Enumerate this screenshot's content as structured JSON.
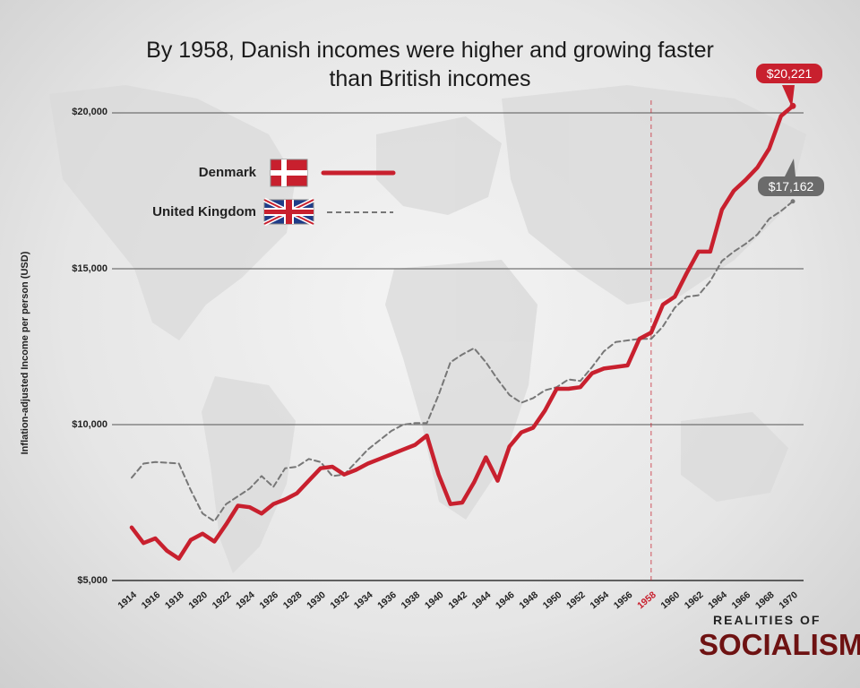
{
  "title_line1": "By 1958, Danish incomes were higher and growing faster",
  "title_line2": "than British incomes",
  "brand": {
    "line1": "REALITIES OF",
    "line2": "SOCIALISM"
  },
  "callouts": {
    "denmark_last": "$20,221",
    "uk_last": "$17,162"
  },
  "legend": [
    {
      "name": "Denmark",
      "flag": "denmark-flag-icon",
      "style": "solid",
      "color": "#c8202e"
    },
    {
      "name": "United Kingdom",
      "flag": "uk-flag-icon",
      "style": "dashed",
      "color": "#777777"
    }
  ],
  "colors": {
    "denmark": "#c8202e",
    "uk": "#777777",
    "marker": "#c8202e"
  },
  "chart_data": {
    "type": "line",
    "title": "By 1958, Danish incomes were higher and growing faster than British incomes",
    "ylabel": "Inflation-adjusted Income per person (USD)",
    "xlabel": "",
    "ylim": [
      5000,
      20000
    ],
    "y_tick_labels": [
      "$5,000",
      "$10,000",
      "$15,000",
      "$20,000"
    ],
    "y_tick_values": [
      5000,
      10000,
      15000,
      20000
    ],
    "x_tick_labels": [
      "1914",
      "1916",
      "1918",
      "1920",
      "1922",
      "1924",
      "1926",
      "1928",
      "1930",
      "1932",
      "1934",
      "1936",
      "1938",
      "1940",
      "1942",
      "1944",
      "1946",
      "1948",
      "1950",
      "1952",
      "1954",
      "1956",
      "1958",
      "1960",
      "1962",
      "1964",
      "1966",
      "1968",
      "1970"
    ],
    "highlight_year": 1958,
    "grid": "horizontal",
    "x": [
      1914,
      1915,
      1916,
      1917,
      1918,
      1919,
      1920,
      1921,
      1922,
      1923,
      1924,
      1925,
      1926,
      1927,
      1928,
      1929,
      1930,
      1931,
      1932,
      1933,
      1934,
      1935,
      1936,
      1937,
      1938,
      1939,
      1940,
      1941,
      1942,
      1943,
      1944,
      1945,
      1946,
      1947,
      1948,
      1949,
      1950,
      1951,
      1952,
      1953,
      1954,
      1955,
      1956,
      1957,
      1958,
      1959,
      1960,
      1961,
      1962,
      1963,
      1964,
      1965,
      1966,
      1967,
      1968,
      1969,
      1970
    ],
    "series": [
      {
        "name": "Denmark",
        "values": [
          6700,
          6200,
          6350,
          5950,
          5700,
          6300,
          6500,
          6250,
          6800,
          7400,
          7350,
          7150,
          7450,
          7600,
          7800,
          8200,
          8600,
          8650,
          8400,
          8550,
          8750,
          8900,
          9050,
          9200,
          9350,
          9650,
          8400,
          7450,
          7500,
          8150,
          8950,
          8200,
          9300,
          9750,
          9900,
          10450,
          11150,
          11150,
          11200,
          11650,
          11800,
          11850,
          11900,
          12750,
          12950,
          13850,
          14100,
          14850,
          15550,
          15550,
          16900,
          17500,
          17850,
          18250,
          18850,
          19900,
          20221
        ]
      },
      {
        "name": "United Kingdom",
        "values": [
          8300,
          8750,
          8800,
          8780,
          8750,
          7900,
          7150,
          6900,
          7450,
          7700,
          7950,
          8350,
          8000,
          8600,
          8650,
          8900,
          8800,
          8350,
          8400,
          8800,
          9200,
          9500,
          9800,
          10000,
          10050,
          10050,
          10950,
          12000,
          12250,
          12450,
          12000,
          11450,
          10950,
          10700,
          10850,
          11100,
          11200,
          11450,
          11400,
          11850,
          12350,
          12650,
          12700,
          12750,
          12750,
          13150,
          13750,
          14100,
          14150,
          14600,
          15250,
          15550,
          15800,
          16100,
          16600,
          16850,
          17162
        ]
      }
    ]
  }
}
